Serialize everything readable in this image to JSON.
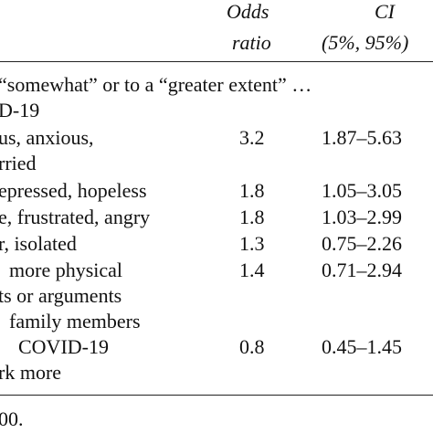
{
  "table": {
    "header": {
      "col_odds_line1": "Odds",
      "col_odds_line2": "ratio",
      "col_ci_line1": "CI",
      "col_ci_line2": "(5%, 95%)"
    },
    "section_heading_line1": "“somewhat” or to a “greater extent” …",
    "section_heading_line2": "D-19",
    "rows": [
      {
        "label_line1": "us, anxious,",
        "label_line2": "rried",
        "odds_ratio": "3.2",
        "ci": "1.87–5.63"
      },
      {
        "label_line1": "epressed, hopeless",
        "odds_ratio": "1.8",
        "ci": "1.05–3.05"
      },
      {
        "label_line1": "e, frustrated, angry",
        "odds_ratio": "1.8",
        "ci": "1.03–2.99"
      },
      {
        "label_line1": "r, isolated",
        "odds_ratio": "1.3",
        "ci": "0.75–2.26"
      },
      {
        "label_line1": "more physical",
        "label_line2": "ts or arguments",
        "label_line3": "family members",
        "odds_ratio": "1.4",
        "ci": "0.71–2.94"
      },
      {
        "label_line1": "COVID-19",
        "label_line2": "rk more",
        "odds_ratio": "0.8",
        "ci": "0.45–1.45"
      }
    ],
    "footnote": "00."
  }
}
